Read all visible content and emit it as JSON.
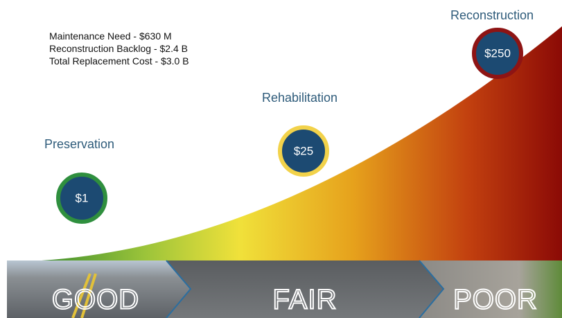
{
  "notes": [
    "Maintenance Need - $630 M",
    "Reconstruction Backlog - $2.4 B",
    "Total Replacement Cost - $3.0 B"
  ],
  "stages": [
    {
      "label": "Preservation",
      "cost": "$1"
    },
    {
      "label": "Rehabilitation",
      "cost": "$25"
    },
    {
      "label": "Reconstruction",
      "cost": "$250"
    }
  ],
  "conditions": [
    "GOOD",
    "FAIR",
    "POOR"
  ]
}
